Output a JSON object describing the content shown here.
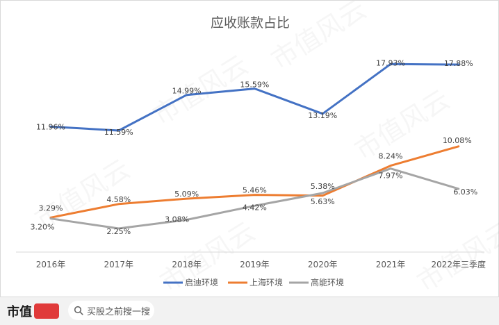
{
  "brand": {
    "name": "市值"
  },
  "search": {
    "label": "买股之前搜一搜"
  },
  "watermark": "市值风云",
  "chart_data": {
    "type": "line",
    "title": "应收账款占比",
    "categories": [
      "2016年",
      "2017年",
      "2018年",
      "2019年",
      "2020年",
      "2021年",
      "2022年三季度"
    ],
    "series": [
      {
        "name": "启迪环境",
        "color": "#4472C4",
        "values": [
          11.96,
          11.59,
          14.99,
          15.59,
          13.19,
          17.93,
          17.88
        ]
      },
      {
        "name": "上海环境",
        "color": "#ED7D31",
        "values": [
          3.29,
          4.58,
          5.09,
          5.46,
          5.38,
          8.24,
          10.08
        ]
      },
      {
        "name": "高能环境",
        "color": "#A5A5A5",
        "values": [
          3.2,
          2.25,
          3.08,
          4.42,
          5.63,
          7.97,
          6.03
        ]
      }
    ],
    "data_labels": [
      "11.96%",
      "11.59%",
      "14.99%",
      "15.59%",
      "13.19%",
      "17.93%",
      "17.88%",
      "3.29%",
      "4.58%",
      "5.09%",
      "5.46%",
      "5.38%",
      "8.24%",
      "10.08%",
      "3.20%",
      "2.25%",
      "3.08%",
      "4.42%",
      "5.63%",
      "7.97%",
      "6.03%"
    ],
    "ylim": [
      0,
      20
    ],
    "grid": false,
    "legend_position": "bottom"
  }
}
